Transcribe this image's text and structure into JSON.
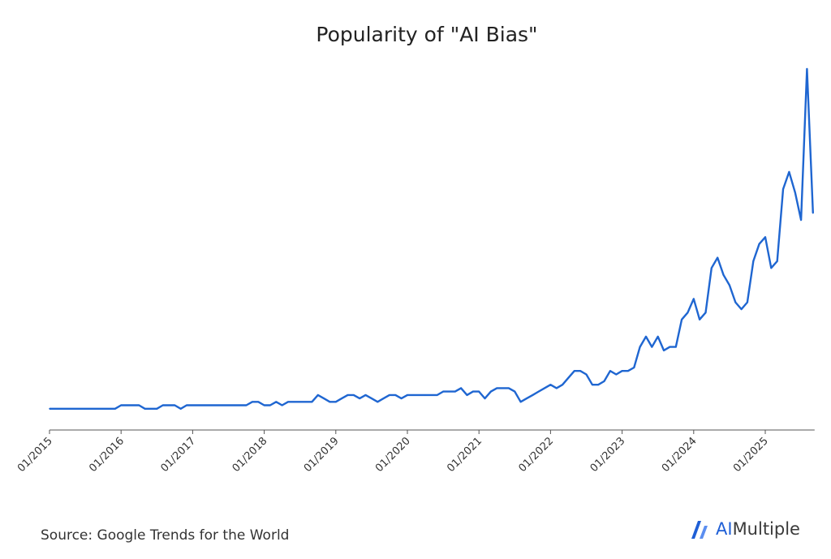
{
  "chart_data": {
    "type": "line",
    "title": "Popularity of \"AI Bias\"",
    "xlabel": "",
    "ylabel": "",
    "x_tick_labels": [
      "01/2015",
      "01/2016",
      "01/2017",
      "01/2018",
      "01/2019",
      "01/2020",
      "01/2021",
      "01/2022",
      "01/2023",
      "01/2024",
      "01/2025"
    ],
    "x_start": "01/2015",
    "ylim": [
      0,
      100
    ],
    "grid": false,
    "legend": "none",
    "line_color": "#1f66d1",
    "series": [
      {
        "values": [
          1,
          1,
          1,
          1,
          1,
          1,
          1,
          1,
          1,
          1,
          1,
          1,
          2,
          2,
          2,
          2,
          1,
          1,
          1,
          2,
          2,
          2,
          1,
          2,
          2,
          2,
          2,
          2,
          2,
          2,
          2,
          2,
          2,
          2,
          3,
          3,
          2,
          2,
          3,
          2,
          3,
          3,
          3,
          3,
          3,
          5,
          4,
          3,
          3,
          4,
          5,
          5,
          4,
          5,
          4,
          3,
          4,
          5,
          5,
          4,
          5,
          5,
          5,
          5,
          5,
          5,
          6,
          6,
          6,
          7,
          5,
          6,
          6,
          4,
          6,
          7,
          7,
          7,
          6,
          3,
          4,
          5,
          6,
          7,
          8,
          7,
          8,
          10,
          12,
          12,
          11,
          8,
          8,
          9,
          12,
          11,
          12,
          12,
          13,
          19,
          22,
          19,
          22,
          18,
          19,
          19,
          27,
          29,
          33,
          27,
          29,
          42,
          45,
          40,
          37,
          32,
          30,
          32,
          44,
          49,
          51,
          42,
          44,
          65,
          70,
          64,
          56,
          100,
          58
        ]
      }
    ]
  },
  "footer": {
    "source": "Source: Google Trends for the World",
    "brand_ai": "AI",
    "brand_rest": "Multiple"
  },
  "colors": {
    "line": "#1f66d1",
    "axis": "#555555",
    "brand_blue": "#1f5fd6"
  }
}
